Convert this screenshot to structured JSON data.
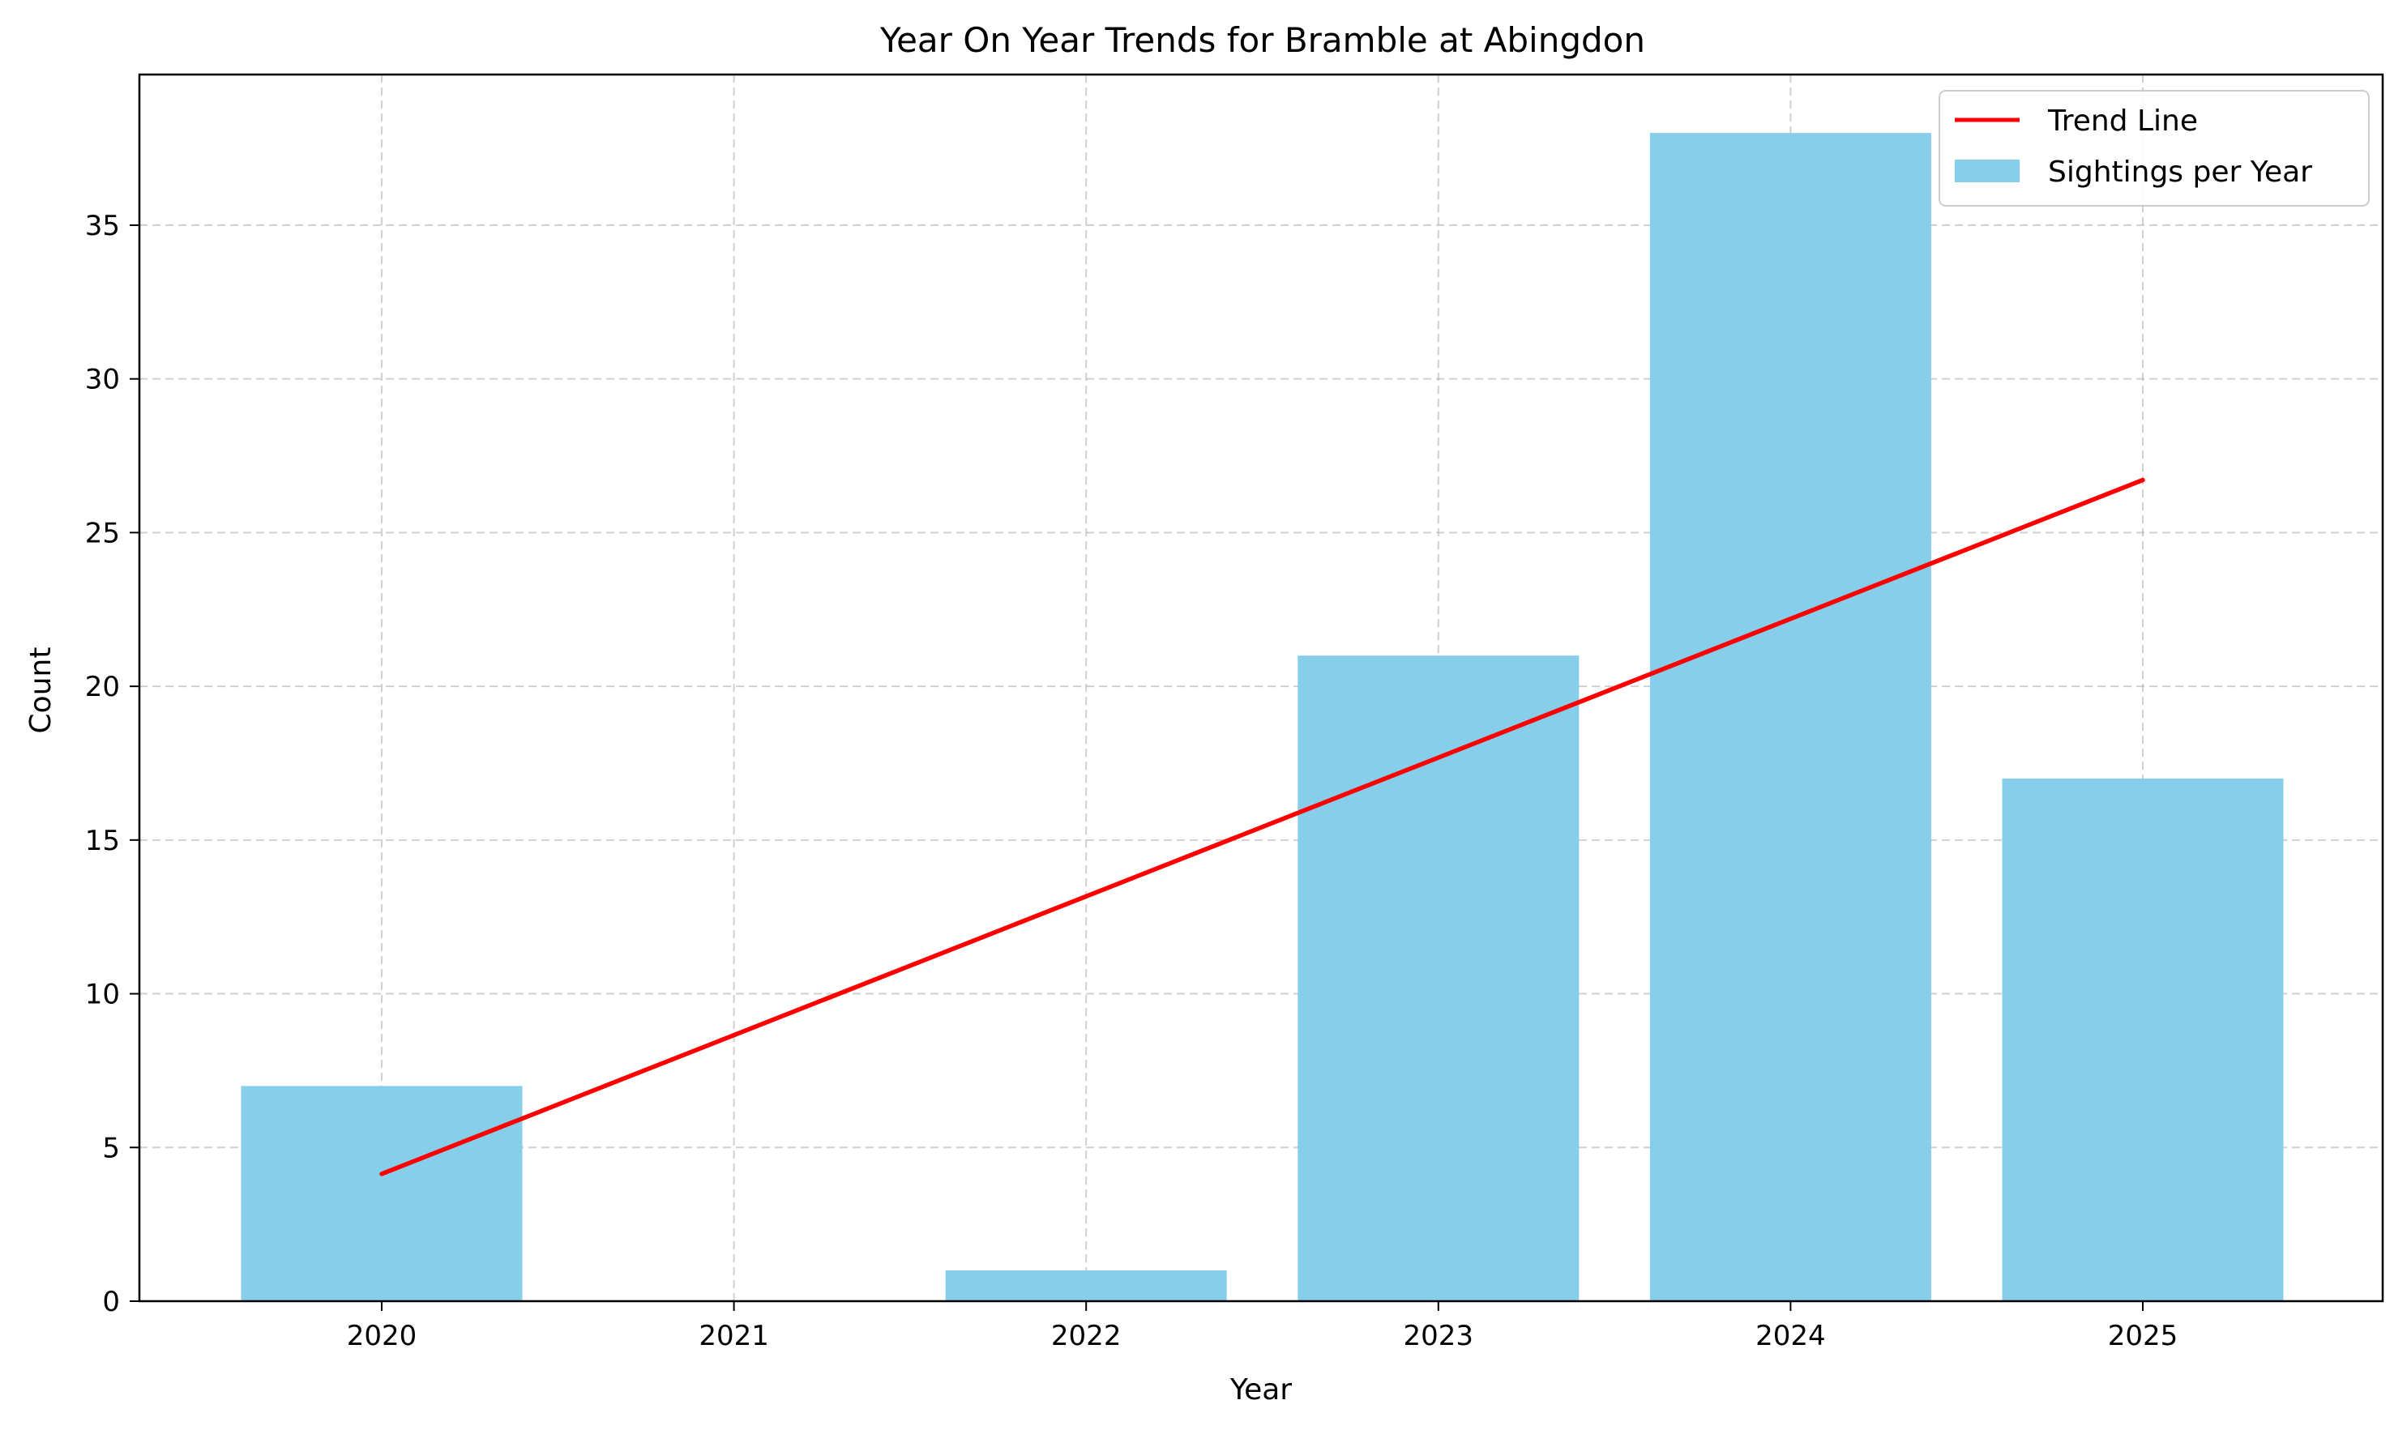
{
  "chart_data": {
    "type": "bar",
    "title": "Year On Year Trends for Bramble at Abingdon",
    "xlabel": "Year",
    "ylabel": "Count",
    "categories": [
      "2020",
      "2021",
      "2022",
      "2023",
      "2024",
      "2025"
    ],
    "series": [
      {
        "name": "Sightings per Year",
        "type": "bar",
        "color": "#87CEEB",
        "values": [
          7,
          0,
          1,
          21,
          38,
          17
        ]
      },
      {
        "name": "Trend Line",
        "type": "line",
        "color": "#ff0000",
        "x": [
          "2020",
          "2025"
        ],
        "values": [
          4.14,
          26.71
        ]
      }
    ],
    "ylim": [
      0,
      39.9
    ],
    "yticks": [
      0,
      5,
      10,
      15,
      20,
      25,
      30,
      35
    ],
    "grid": true,
    "legend_position": "top-right"
  }
}
